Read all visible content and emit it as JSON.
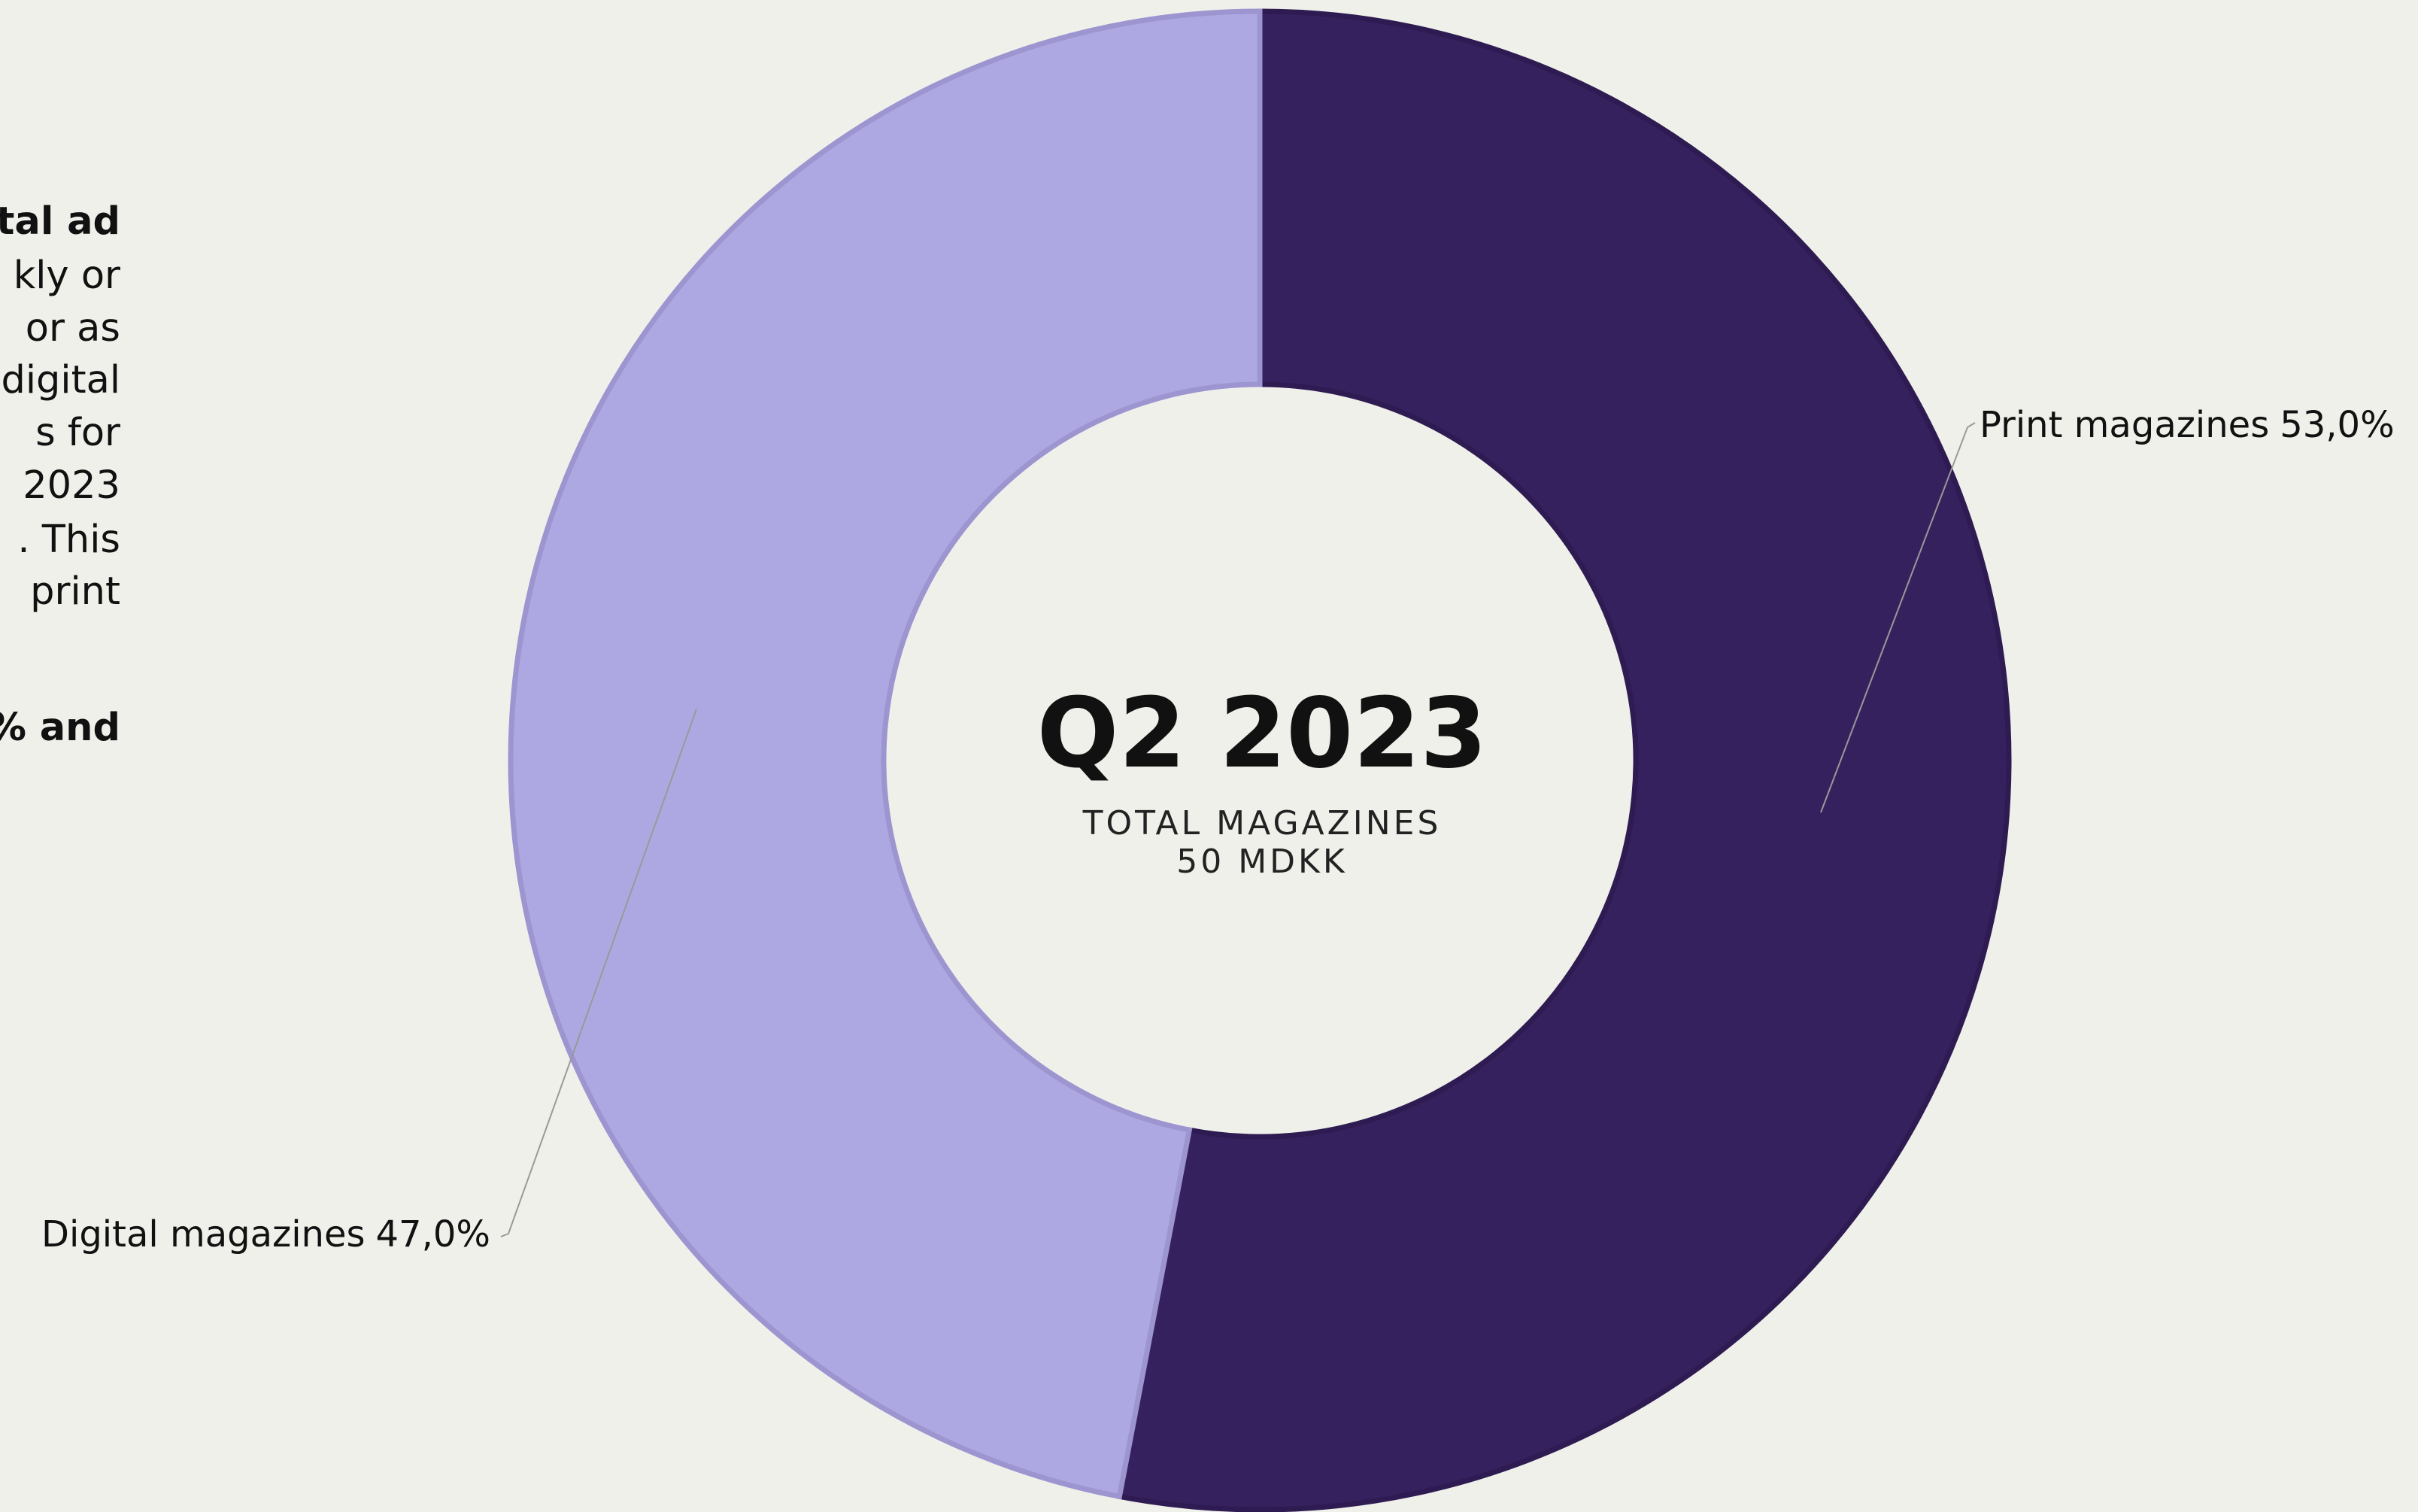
{
  "side_text": {
    "lines": [
      "tal ad",
      "kly or",
      "or as",
      "digital",
      "s for",
      "2023",
      ". This",
      "print"
    ],
    "last_line": "% and"
  },
  "chart_data": {
    "type": "donut",
    "categories": [
      "Print magazines",
      "Digital magazines"
    ],
    "values": [
      53.0,
      47.0
    ],
    "value_labels": [
      "53,0%",
      "47,0%"
    ],
    "colors": [
      "#36215f",
      "#ada8e2"
    ],
    "center_title": "Q2 2023",
    "center_subtitle": [
      "TOTAL MAGAZINES",
      "50 MDKK"
    ]
  }
}
